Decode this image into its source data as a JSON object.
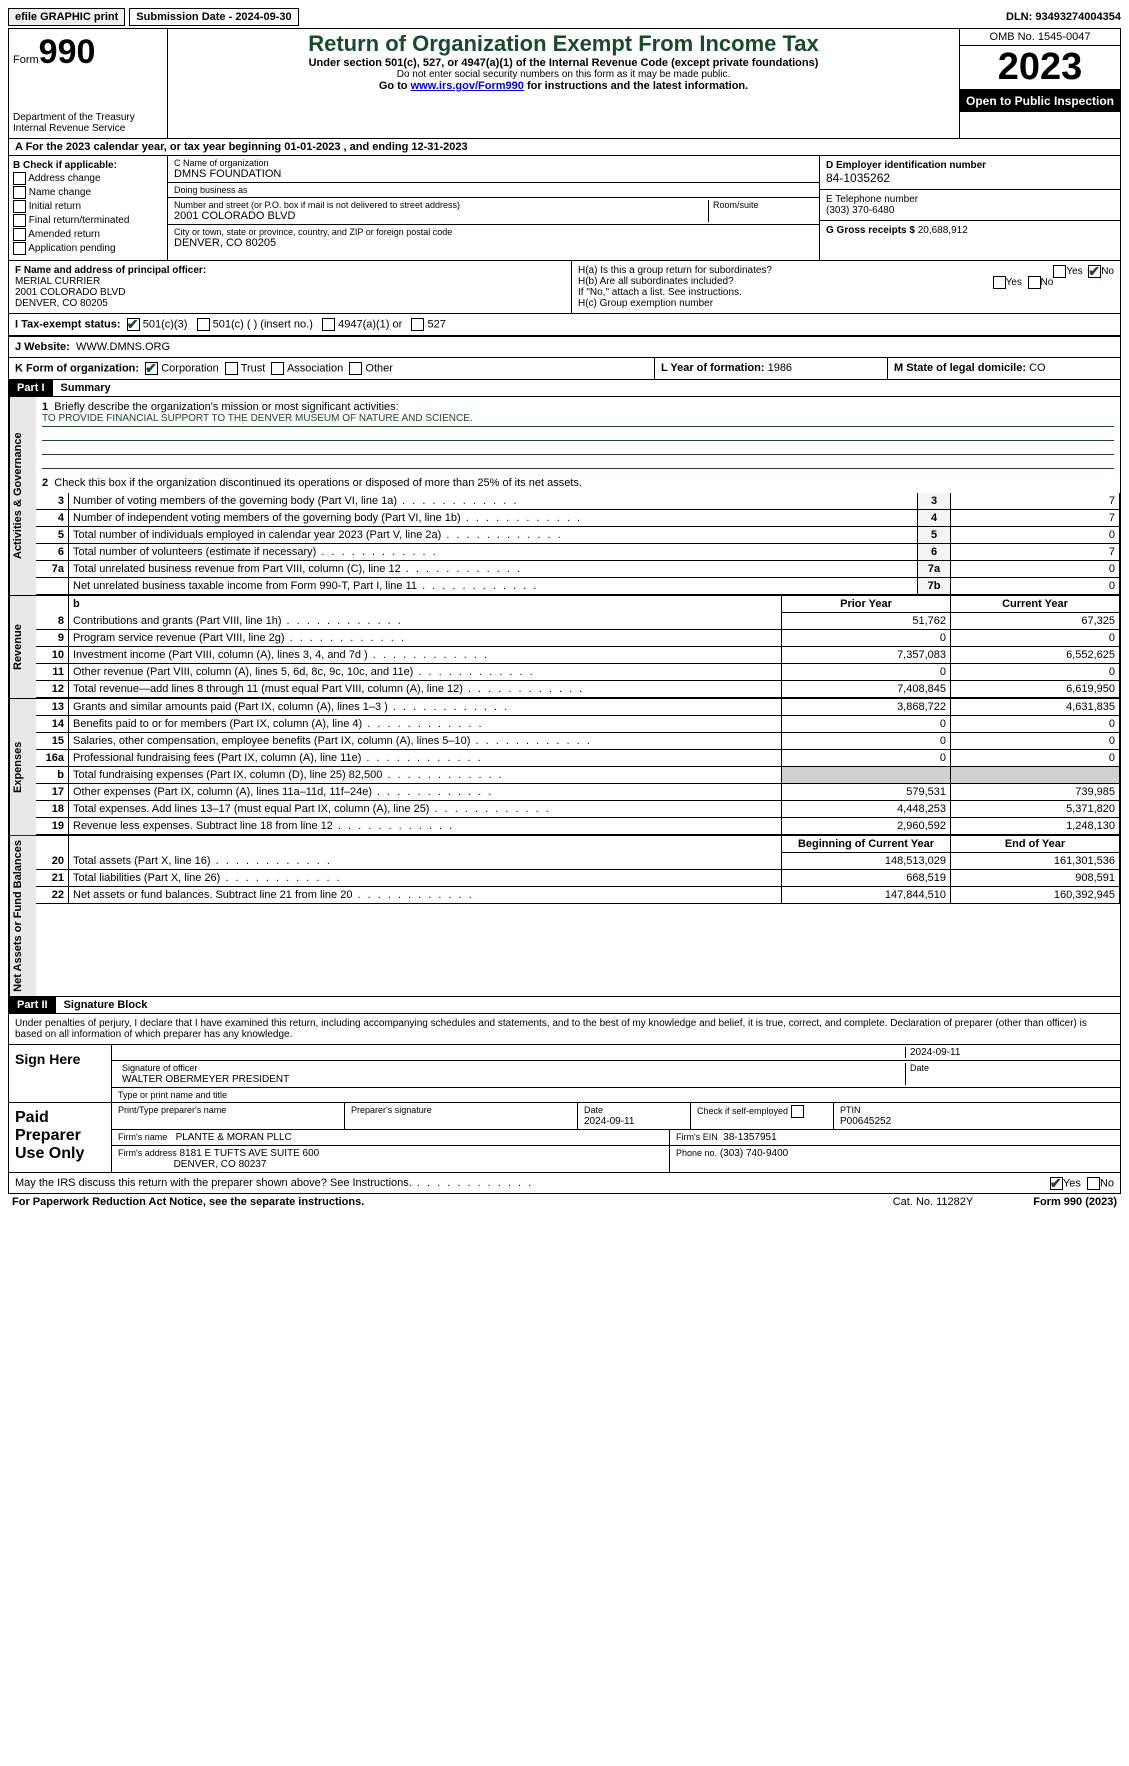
{
  "topbar": {
    "efile": "efile GRAPHIC print",
    "submission": "Submission Date - 2024-09-30",
    "dln": "DLN: 93493274004354"
  },
  "header": {
    "form_label": "Form",
    "form_number": "990",
    "dept1": "Department of the Treasury",
    "dept2": "Internal Revenue Service",
    "title": "Return of Organization Exempt From Income Tax",
    "sub1": "Under section 501(c), 527, or 4947(a)(1) of the Internal Revenue Code (except private foundations)",
    "sub2": "Do not enter social security numbers on this form as it may be made public.",
    "sub3a": "Go to ",
    "sub3_link": "www.irs.gov/Form990",
    "sub3b": " for instructions and the latest information.",
    "omb": "OMB No. 1545-0047",
    "year": "2023",
    "open": "Open to Public Inspection"
  },
  "taxyear": {
    "a_label": "A For the 2023 calendar year, or tax year beginning ",
    "begin": "01-01-2023",
    "mid": " , and ending ",
    "end": "12-31-2023"
  },
  "boxB": {
    "label": "B Check if applicable:",
    "opts": [
      "Address change",
      "Name change",
      "Initial return",
      "Final return/terminated",
      "Amended return",
      "Application pending"
    ]
  },
  "boxC": {
    "name_lab": "C Name of organization",
    "name": "DMNS FOUNDATION",
    "dba_lab": "Doing business as",
    "dba": "",
    "street_lab": "Number and street (or P.O. box if mail is not delivered to street address)",
    "room_lab": "Room/suite",
    "street": "2001 COLORADO BLVD",
    "city_lab": "City or town, state or province, country, and ZIP or foreign postal code",
    "city": "DENVER, CO  80205"
  },
  "boxD": {
    "label": "D Employer identification number",
    "val": "84-1035262"
  },
  "boxE": {
    "label": "E Telephone number",
    "val": "(303) 370-6480"
  },
  "boxG": {
    "label": "G Gross receipts $",
    "val": "20,688,912"
  },
  "boxF": {
    "label": "F  Name and address of principal officer:",
    "name": "MERIAL CURRIER",
    "street": "2001 COLORADO BLVD",
    "city": "DENVER, CO  80205"
  },
  "boxH": {
    "a": "H(a)  Is this a group return for subordinates?",
    "a_yes": false,
    "a_no": true,
    "b": "H(b)  Are all subordinates included?",
    "b_note": "If \"No,\" attach a list. See instructions.",
    "c": "H(c)  Group exemption number",
    "c_val": ""
  },
  "boxI": {
    "label": "I   Tax-exempt status:",
    "s501c3": true,
    "opts": [
      "501(c)(3)",
      "501(c) (  ) (insert no.)",
      "4947(a)(1) or",
      "527"
    ]
  },
  "boxJ": {
    "label": "J   Website:",
    "val": "WWW.DMNS.ORG"
  },
  "boxK": {
    "label": "K Form of organization:",
    "corp": true,
    "opts": [
      "Corporation",
      "Trust",
      "Association",
      "Other"
    ]
  },
  "boxL": {
    "label": "L Year of formation:",
    "val": "1986"
  },
  "boxM": {
    "label": "M State of legal domicile:",
    "val": "CO"
  },
  "part1": {
    "hdr": "Part I",
    "title": "Summary",
    "grp1_label": "Activities & Governance",
    "line1_lab": "Briefly describe the organization's mission or most significant activities:",
    "mission": "TO PROVIDE FINANCIAL SUPPORT TO THE DENVER MUSEUM OF NATURE AND SCIENCE.",
    "line2": "Check this box       if the organization discontinued its operations or disposed of more than 25% of its net assets.",
    "rows_gov": [
      {
        "n": "3",
        "d": "Number of voting members of the governing body (Part VI, line 1a)",
        "b": "3",
        "v": "7"
      },
      {
        "n": "4",
        "d": "Number of independent voting members of the governing body (Part VI, line 1b)",
        "b": "4",
        "v": "7"
      },
      {
        "n": "5",
        "d": "Total number of individuals employed in calendar year 2023 (Part V, line 2a)",
        "b": "5",
        "v": "0"
      },
      {
        "n": "6",
        "d": "Total number of volunteers (estimate if necessary)",
        "b": "6",
        "v": "7"
      },
      {
        "n": "7a",
        "d": "Total unrelated business revenue from Part VIII, column (C), line 12",
        "b": "7a",
        "v": "0"
      },
      {
        "n": "",
        "d": "Net unrelated business taxable income from Form 990-T, Part I, line 11",
        "b": "7b",
        "v": "0"
      }
    ],
    "grp2_label": "Revenue",
    "col_prior": "Prior Year",
    "col_curr": "Current Year",
    "rows_rev": [
      {
        "n": "8",
        "d": "Contributions and grants (Part VIII, line 1h)",
        "p": "51,762",
        "c": "67,325"
      },
      {
        "n": "9",
        "d": "Program service revenue (Part VIII, line 2g)",
        "p": "0",
        "c": "0"
      },
      {
        "n": "10",
        "d": "Investment income (Part VIII, column (A), lines 3, 4, and 7d )",
        "p": "7,357,083",
        "c": "6,552,625"
      },
      {
        "n": "11",
        "d": "Other revenue (Part VIII, column (A), lines 5, 6d, 8c, 9c, 10c, and 11e)",
        "p": "0",
        "c": "0"
      },
      {
        "n": "12",
        "d": "Total revenue—add lines 8 through 11 (must equal Part VIII, column (A), line 12)",
        "p": "7,408,845",
        "c": "6,619,950"
      }
    ],
    "grp3_label": "Expenses",
    "rows_exp": [
      {
        "n": "13",
        "d": "Grants and similar amounts paid (Part IX, column (A), lines 1–3 )",
        "p": "3,868,722",
        "c": "4,631,835"
      },
      {
        "n": "14",
        "d": "Benefits paid to or for members (Part IX, column (A), line 4)",
        "p": "0",
        "c": "0"
      },
      {
        "n": "15",
        "d": "Salaries, other compensation, employee benefits (Part IX, column (A), lines 5–10)",
        "p": "0",
        "c": "0"
      },
      {
        "n": "16a",
        "d": "Professional fundraising fees (Part IX, column (A), line 11e)",
        "p": "0",
        "c": "0"
      },
      {
        "n": "b",
        "d": "Total fundraising expenses (Part IX, column (D), line 25) 82,500",
        "p": "",
        "c": "",
        "shade": true
      },
      {
        "n": "17",
        "d": "Other expenses (Part IX, column (A), lines 11a–11d, 11f–24e)",
        "p": "579,531",
        "c": "739,985"
      },
      {
        "n": "18",
        "d": "Total expenses. Add lines 13–17 (must equal Part IX, column (A), line 25)",
        "p": "4,448,253",
        "c": "5,371,820"
      },
      {
        "n": "19",
        "d": "Revenue less expenses. Subtract line 18 from line 12",
        "p": "2,960,592",
        "c": "1,248,130"
      }
    ],
    "grp4_label": "Net Assets or Fund Balances",
    "col_begin": "Beginning of Current Year",
    "col_end": "End of Year",
    "rows_net": [
      {
        "n": "20",
        "d": "Total assets (Part X, line 16)",
        "p": "148,513,029",
        "c": "161,301,536"
      },
      {
        "n": "21",
        "d": "Total liabilities (Part X, line 26)",
        "p": "668,519",
        "c": "908,591"
      },
      {
        "n": "22",
        "d": "Net assets or fund balances. Subtract line 21 from line 20",
        "p": "147,844,510",
        "c": "160,392,945"
      }
    ]
  },
  "part2": {
    "hdr": "Part II",
    "title": "Signature Block",
    "intro": "Under penalties of perjury, I declare that I have examined this return, including accompanying schedules and statements, and to the best of my knowledge and belief, it is true, correct, and complete. Declaration of preparer (other than officer) is based on all information of which preparer has any knowledge.",
    "sign_here": "Sign Here",
    "sig_off_lab": "Signature of officer",
    "sig_date": "2024-09-11",
    "sig_name": "WALTER OBERMEYER  PRESIDENT",
    "sig_name_lab": "Type or print name and title",
    "paid": "Paid Preparer Use Only",
    "pp_name_lab": "Print/Type preparer's name",
    "pp_sig_lab": "Preparer's signature",
    "pp_date_lab": "Date",
    "pp_date": "2024-09-11",
    "pp_check": "Check        if self-employed",
    "ptin_lab": "PTIN",
    "ptin": "P00645252",
    "firm_name_lab": "Firm's name",
    "firm_name": "PLANTE & MORAN PLLC",
    "firm_ein_lab": "Firm's EIN",
    "firm_ein": "38-1357951",
    "firm_addr_lab": "Firm's address",
    "firm_addr1": "8181 E TUFTS AVE SUITE 600",
    "firm_addr2": "DENVER, CO  80237",
    "firm_phone_lab": "Phone no.",
    "firm_phone": "(303) 740-9400",
    "discuss": "May the IRS discuss this return with the preparer shown above? See Instructions.",
    "discuss_yes": true
  },
  "footer": {
    "pra": "For Paperwork Reduction Act Notice, see the separate instructions.",
    "cat": "Cat. No. 11282Y",
    "form": "Form 990 (2023)"
  }
}
